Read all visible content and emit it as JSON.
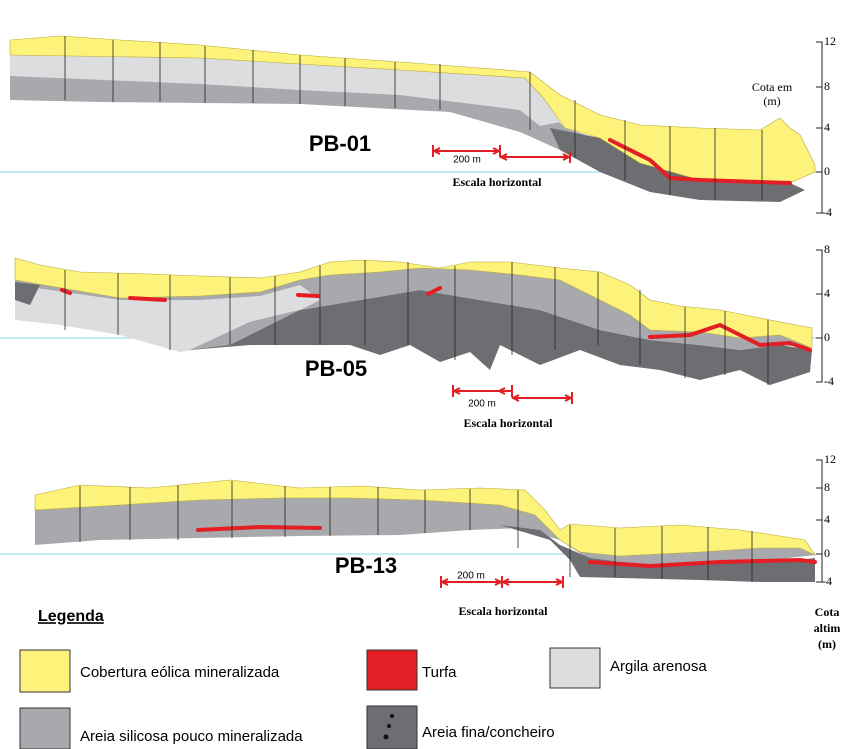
{
  "sections": [
    {
      "label": "PB-01",
      "ticks": [
        "12",
        "8",
        "4",
        "0",
        "-4"
      ],
      "scale_label": "200 m",
      "scale_title": "Escala horizontal",
      "axis_title": [
        "Cota em",
        "(m)"
      ]
    },
    {
      "label": "PB-05",
      "ticks": [
        "8",
        "4",
        "0",
        "-4"
      ],
      "scale_label": "200 m",
      "scale_title": "Escala horizontal"
    },
    {
      "label": "PB-13",
      "ticks": [
        "12",
        "8",
        "4",
        "0",
        "-4"
      ],
      "scale_label": "200 m",
      "scale_title": "Escala horizontal",
      "axis_title": [
        "Cota",
        "altim",
        "(m)"
      ]
    }
  ],
  "legend": {
    "title": "Legenda",
    "items": [
      {
        "label": "Cobertura eólica mineralizada"
      },
      {
        "label": "Turfa"
      },
      {
        "label": "Argila arenosa"
      },
      {
        "label": "Areia silicosa pouco mineralizada"
      },
      {
        "label": "Areia fina/concheiro"
      }
    ]
  }
}
